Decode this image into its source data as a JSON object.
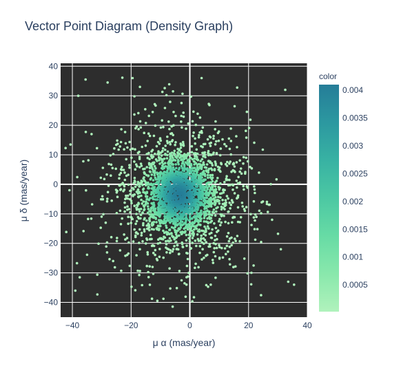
{
  "chart_data": {
    "type": "scatter",
    "title": "Vector Point Diagram (Density Graph)",
    "xlabel": "μ α (mas/year)",
    "ylabel": "μ δ (mas/year)",
    "xlim": [
      -44,
      40
    ],
    "ylim": [
      -45,
      41
    ],
    "x_ticks": [
      -40,
      -20,
      0,
      20,
      40
    ],
    "y_ticks": [
      -40,
      -30,
      -20,
      -10,
      0,
      10,
      20,
      30,
      40
    ],
    "grid": true,
    "plot_background": "#2d2d2d",
    "colorscale": [
      "#b0f2bc",
      "#89e8ac",
      "#67dba5",
      "#4cc8a3",
      "#38b2a3",
      "#2c98a0",
      "#257d98"
    ],
    "colorbar": {
      "title": "color",
      "range": [
        2e-05,
        0.0041
      ],
      "ticks": [
        0.0005,
        0.001,
        0.0015,
        0.002,
        0.0025,
        0.003,
        0.0035,
        0.004
      ],
      "tick_labels": [
        "0.0005",
        "0.001",
        "0.0015",
        "0.002",
        "0.0025",
        "0.003",
        "0.0035",
        "0.004"
      ]
    },
    "distribution": {
      "center": [
        -3.5,
        -3.5
      ],
      "core_sigma": [
        6.5,
        7.0
      ],
      "point_count": 2500
    },
    "sample_outliers": [
      {
        "x": 32.5,
        "y": 32.0
      },
      {
        "x": -35.5,
        "y": 35.5
      },
      {
        "x": -19.5,
        "y": 36.0
      },
      {
        "x": 4.0,
        "y": 36.0
      },
      {
        "x": -17.0,
        "y": 33.0
      },
      {
        "x": -38.0,
        "y": 30.0
      },
      {
        "x": -28.0,
        "y": 34.5
      },
      {
        "x": 33.5,
        "y": -33.0
      },
      {
        "x": 35.5,
        "y": -34.0
      },
      {
        "x": 31.0,
        "y": -22.0
      },
      {
        "x": -39.0,
        "y": -36.0
      },
      {
        "x": -41.0,
        "y": -2.0
      },
      {
        "x": -37.5,
        "y": -31.5
      },
      {
        "x": 28.0,
        "y": -12.0
      }
    ]
  }
}
